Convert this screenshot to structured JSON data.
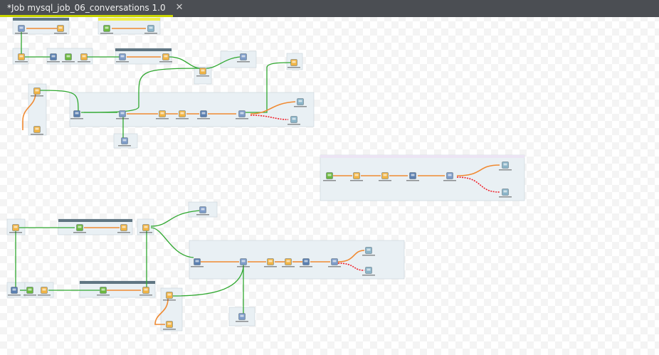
{
  "tab": {
    "title": "*Job mysql_job_06_conversations 1.0",
    "icon": "job-database-icon",
    "close_icon": "close-icon"
  },
  "colors": {
    "tabbar": "#4b4e53",
    "tab_underline": "#c9d400",
    "subjob_header_dark": "#5f7582",
    "subjob_header_yellow": "#f0ee4a",
    "subjob_header_purple": "#ece4f4",
    "subjob_body": "#e9f0f4",
    "trigger_link": "#2fa82f",
    "row_link": "#f08a32",
    "reject_link": "#f0202a"
  }
}
